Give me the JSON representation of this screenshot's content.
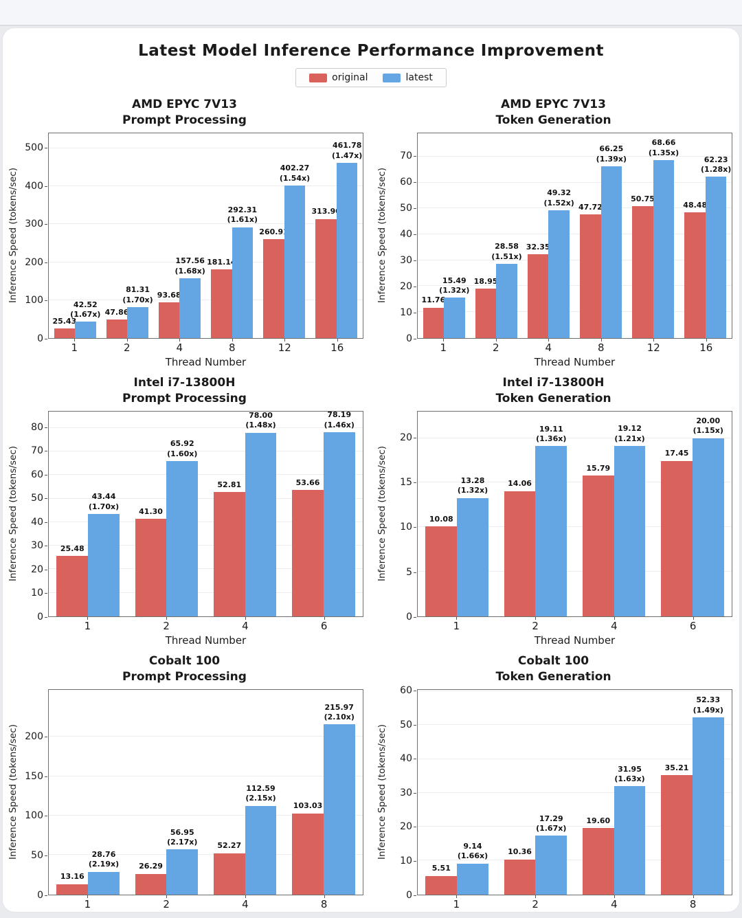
{
  "figure": {
    "title": "Latest Model Inference Performance Improvement",
    "legend": [
      {
        "label": "original",
        "color": "#d9635c"
      },
      {
        "label": "latest",
        "color": "#64a6e4"
      }
    ]
  },
  "chart_data": [
    {
      "type": "bar",
      "slug": "amd-epyc-7v13-prompt-processing",
      "title_line1": "AMD EPYC 7V13",
      "title_line2": "Prompt Processing",
      "xlabel": "Thread Number",
      "ylabel": "Inference Speed (tokens/sec)",
      "categories": [
        "1",
        "2",
        "4",
        "8",
        "12",
        "16"
      ],
      "yticks": [
        0,
        100,
        200,
        300,
        400,
        500
      ],
      "ymax": 540,
      "series": [
        {
          "name": "original",
          "values": [
            25.43,
            47.86,
            93.68,
            181.14,
            260.91,
            313.9
          ],
          "labels": [
            "25.43",
            "47.86",
            "93.68",
            "181.14",
            "260.91",
            "313.90"
          ]
        },
        {
          "name": "latest",
          "values": [
            42.52,
            81.31,
            157.56,
            292.31,
            402.27,
            461.78
          ],
          "labels": [
            "42.52\n(1.67x)",
            "81.31\n(1.70x)",
            "157.56\n(1.68x)",
            "292.31\n(1.61x)",
            "402.27\n(1.54x)",
            "461.78\n(1.47x)"
          ]
        }
      ]
    },
    {
      "type": "bar",
      "slug": "amd-epyc-7v13-token-generation",
      "title_line1": "AMD EPYC 7V13",
      "title_line2": "Token Generation",
      "xlabel": "Thread Number",
      "ylabel": "Inference Speed (tokens/sec)",
      "categories": [
        "1",
        "2",
        "4",
        "8",
        "12",
        "16"
      ],
      "yticks": [
        0,
        10,
        20,
        30,
        40,
        50,
        60,
        70
      ],
      "ymax": 79,
      "series": [
        {
          "name": "original",
          "values": [
            11.76,
            18.95,
            32.35,
            47.72,
            50.75,
            48.48
          ],
          "labels": [
            "11.76",
            "18.95",
            "32.35",
            "47.72",
            "50.75",
            "48.48"
          ]
        },
        {
          "name": "latest",
          "values": [
            15.49,
            28.58,
            49.32,
            66.25,
            68.66,
            62.23
          ],
          "labels": [
            "15.49\n(1.32x)",
            "28.58\n(1.51x)",
            "49.32\n(1.52x)",
            "66.25\n(1.39x)",
            "68.66\n(1.35x)",
            "62.23\n(1.28x)"
          ]
        }
      ]
    },
    {
      "type": "bar",
      "slug": "intel-i7-13800h-prompt-processing",
      "title_line1": "Intel i7-13800H",
      "title_line2": "Prompt Processing",
      "xlabel": "Thread Number",
      "ylabel": "Inference Speed (tokens/sec)",
      "categories": [
        "1",
        "2",
        "4",
        "6"
      ],
      "yticks": [
        0,
        10,
        20,
        30,
        40,
        50,
        60,
        70,
        80
      ],
      "ymax": 87,
      "series": [
        {
          "name": "original",
          "values": [
            25.48,
            41.3,
            52.81,
            53.66
          ],
          "labels": [
            "25.48",
            "41.30",
            "52.81",
            "53.66"
          ]
        },
        {
          "name": "latest",
          "values": [
            43.44,
            65.92,
            78.0,
            78.19
          ],
          "labels": [
            "43.44\n(1.70x)",
            "65.92\n(1.60x)",
            "78.00\n(1.48x)",
            "78.19\n(1.46x)"
          ]
        }
      ]
    },
    {
      "type": "bar",
      "slug": "intel-i7-13800h-token-generation",
      "title_line1": "Intel i7-13800H",
      "title_line2": "Token Generation",
      "xlabel": "Thread Number",
      "ylabel": "Inference Speed (tokens/sec)",
      "categories": [
        "1",
        "2",
        "4",
        "6"
      ],
      "yticks": [
        0,
        5,
        10,
        15,
        20
      ],
      "ymax": 23,
      "series": [
        {
          "name": "original",
          "values": [
            10.08,
            14.06,
            15.79,
            17.45
          ],
          "labels": [
            "10.08",
            "14.06",
            "15.79",
            "17.45"
          ]
        },
        {
          "name": "latest",
          "values": [
            13.28,
            19.11,
            19.12,
            20.0
          ],
          "labels": [
            "13.28\n(1.32x)",
            "19.11\n(1.36x)",
            "19.12\n(1.21x)",
            "20.00\n(1.15x)"
          ]
        }
      ]
    },
    {
      "type": "bar",
      "slug": "cobalt-100-prompt-processing",
      "title_line1": "Cobalt 100",
      "title_line2": "Prompt Processing",
      "xlabel": "Thread Number",
      "ylabel": "Inference Speed (tokens/sec)",
      "categories": [
        "1",
        "2",
        "4",
        "8"
      ],
      "yticks": [
        0,
        50,
        100,
        150,
        200
      ],
      "ymax": 260,
      "series": [
        {
          "name": "original",
          "values": [
            13.16,
            26.29,
            52.27,
            103.03
          ],
          "labels": [
            "13.16",
            "26.29",
            "52.27",
            "103.03"
          ]
        },
        {
          "name": "latest",
          "values": [
            28.76,
            56.95,
            112.59,
            215.97
          ],
          "labels": [
            "28.76\n(2.19x)",
            "56.95\n(2.17x)",
            "112.59\n(2.15x)",
            "215.97\n(2.10x)"
          ]
        }
      ]
    },
    {
      "type": "bar",
      "slug": "cobalt-100-token-generation",
      "title_line1": "Cobalt 100",
      "title_line2": "Token Generation",
      "xlabel": "Thread Number",
      "ylabel": "Inference Speed (tokens/sec)",
      "categories": [
        "1",
        "2",
        "4",
        "8"
      ],
      "yticks": [
        0,
        10,
        20,
        30,
        40,
        50,
        60
      ],
      "ymax": 60.5,
      "series": [
        {
          "name": "original",
          "values": [
            5.51,
            10.36,
            19.6,
            35.21
          ],
          "labels": [
            "5.51",
            "10.36",
            "19.60",
            "35.21"
          ]
        },
        {
          "name": "latest",
          "values": [
            9.14,
            17.29,
            31.95,
            52.33
          ],
          "labels": [
            "9.14\n(1.66x)",
            "17.29\n(1.67x)",
            "31.95\n(1.63x)",
            "52.33\n(1.49x)"
          ]
        }
      ]
    }
  ]
}
